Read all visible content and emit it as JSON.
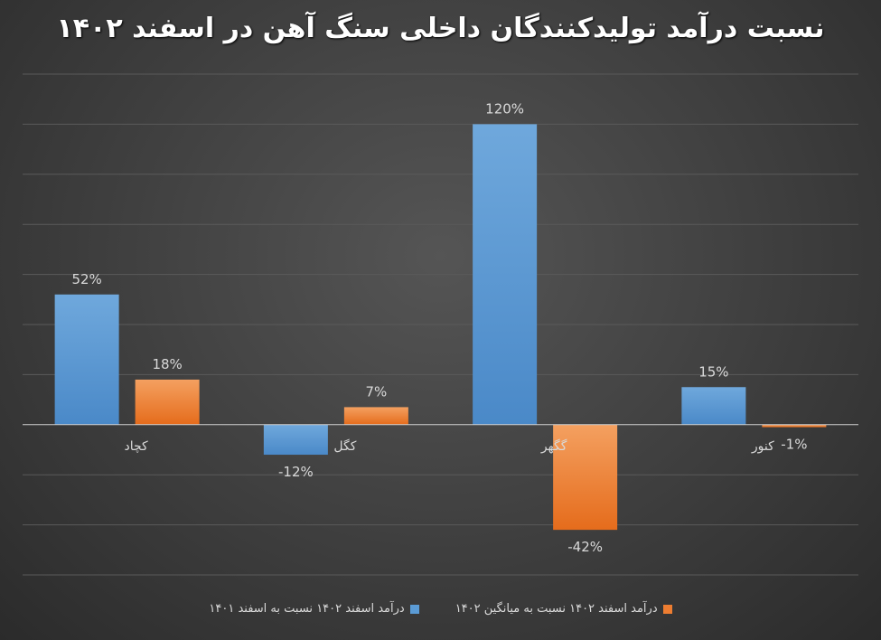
{
  "chart_data": {
    "type": "bar",
    "title": "نسبت درآمد تولیدکنندگان داخلی سنگ آهن در اسفند ۱۴۰۲",
    "categories": [
      "کچاد",
      "کگل",
      "گگهر",
      "کنور"
    ],
    "series": [
      {
        "name": "درآمد اسفند ۱۴۰۲ نسبت به اسفند ۱۴۰۱",
        "color": "#5b9bd5",
        "values": [
          52,
          -12,
          120,
          15
        ]
      },
      {
        "name": "درآمد اسفند ۱۴۰۲ نسبت به میانگین ۱۴۰۲",
        "color": "#ed7d31",
        "values": [
          18,
          7,
          -42,
          -1
        ]
      }
    ],
    "ylim": [
      -60,
      140
    ],
    "ystep": 20,
    "grid": true,
    "legend_position": "bottom",
    "value_suffix": "%"
  }
}
